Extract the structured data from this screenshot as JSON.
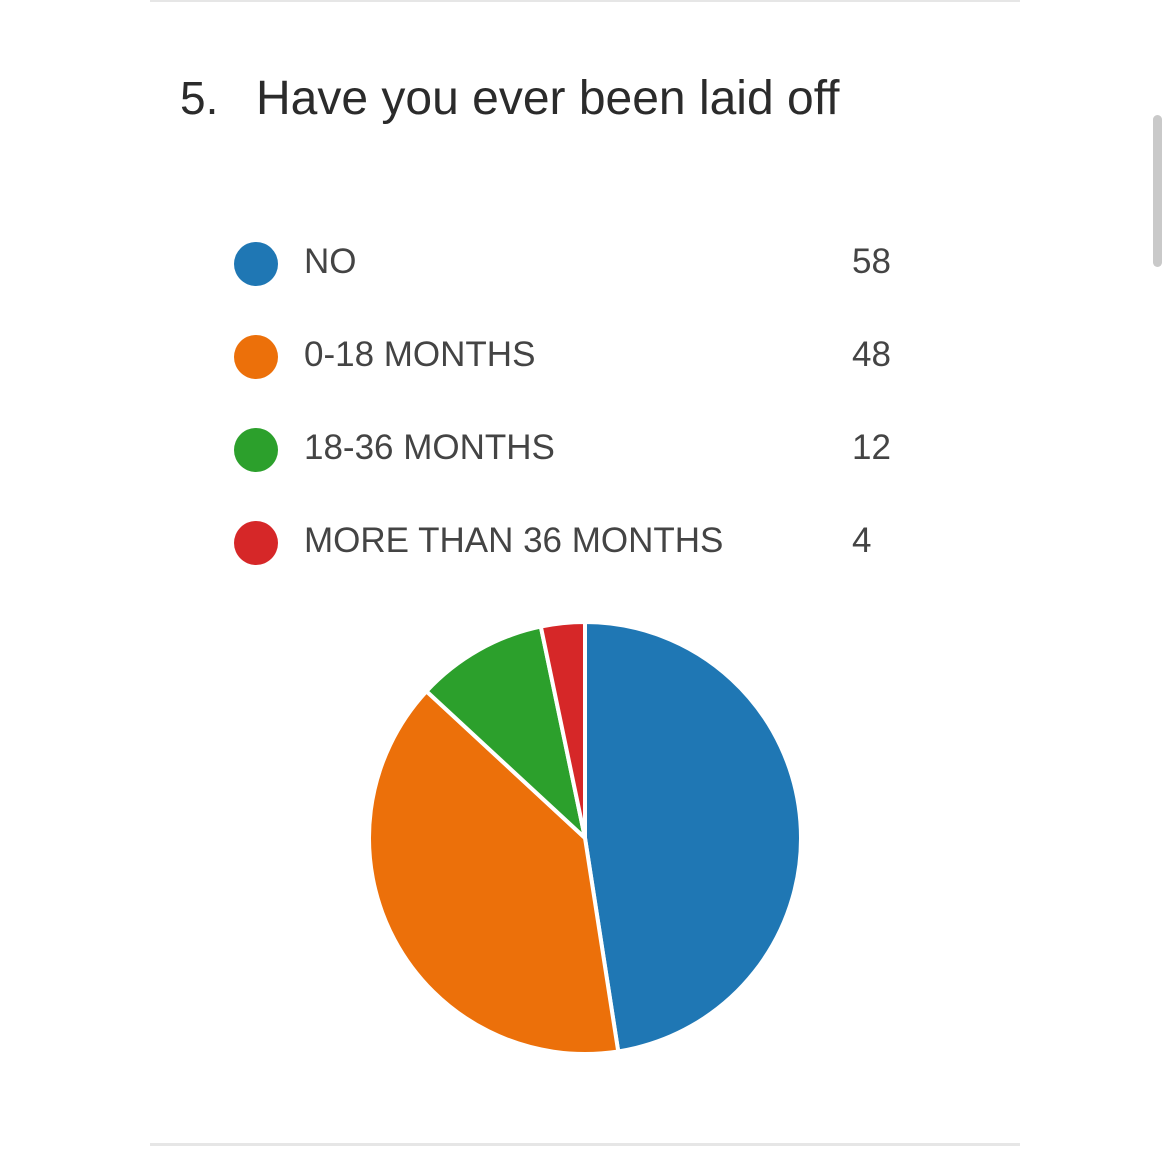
{
  "question": {
    "number": "5.",
    "text": "Have you ever been laid off"
  },
  "chart_data": {
    "type": "pie",
    "categories": [
      "NO",
      "0-18 MONTHS",
      "18-36 MONTHS",
      "MORE THAN 36 MONTHS"
    ],
    "values": [
      58,
      48,
      12,
      4
    ],
    "colors": [
      "#1f77b4",
      "#ec700a",
      "#2ca02c",
      "#d62728"
    ],
    "legend_position": "top"
  }
}
